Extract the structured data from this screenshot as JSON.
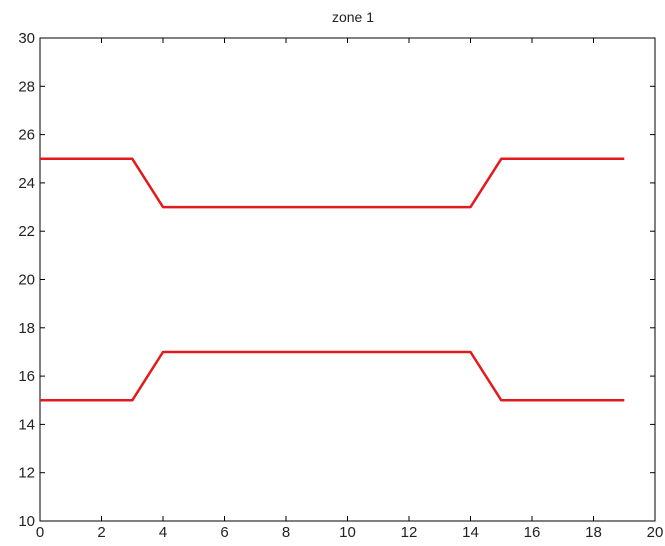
{
  "chart_data": {
    "type": "line",
    "title": "zone 1",
    "xlabel": "",
    "ylabel": "",
    "xlim": [
      0,
      20
    ],
    "ylim": [
      10,
      30
    ],
    "xticks": [
      0,
      2,
      4,
      6,
      8,
      10,
      12,
      14,
      16,
      18,
      20
    ],
    "yticks": [
      10,
      12,
      14,
      16,
      18,
      20,
      22,
      24,
      26,
      28,
      30
    ],
    "grid": false,
    "legend": "none",
    "series": [
      {
        "color": "#e31a1c",
        "x": [
          0,
          3,
          4,
          14,
          15,
          19
        ],
        "y": [
          25,
          25,
          23,
          23,
          25,
          25
        ]
      },
      {
        "color": "#e31a1c",
        "x": [
          0,
          3,
          4,
          14,
          15,
          19
        ],
        "y": [
          15,
          15,
          17,
          17,
          15,
          15
        ]
      }
    ]
  }
}
